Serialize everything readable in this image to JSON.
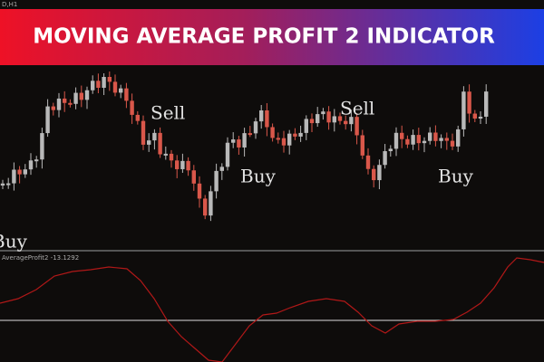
{
  "banner": {
    "title": "MOVING AVERAGE PROFIT 2 INDICATOR"
  },
  "window": {
    "symbol": "D,H1"
  },
  "signals": [
    {
      "label": "Sell"
    },
    {
      "label": "Sell"
    },
    {
      "label": "Buy"
    },
    {
      "label": "Buy"
    },
    {
      "label": "Buy"
    }
  ],
  "indicator": {
    "name": "AverageProfit2 -13.1292"
  }
}
